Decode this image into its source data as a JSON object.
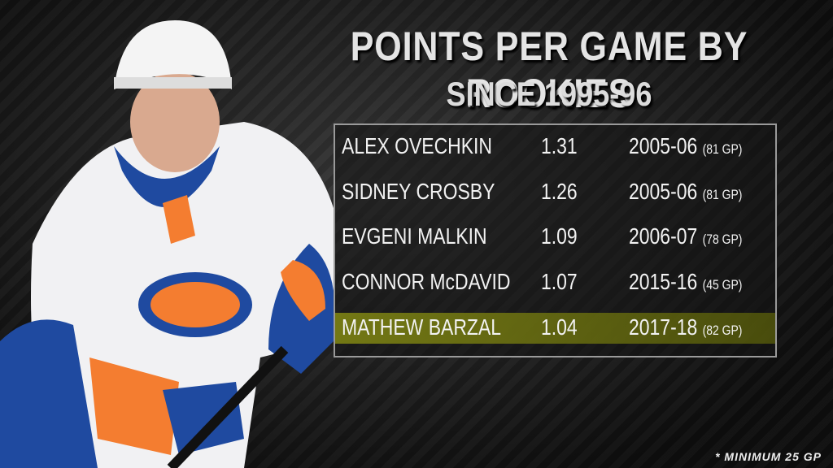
{
  "header": {
    "title": "POINTS PER GAME BY ROOKIES",
    "subtitle": "SINCE 1995-96"
  },
  "table": {
    "rows": [
      [
        "ALEX OVECHKIN",
        "1.31",
        "2005-06",
        "(81 GP)"
      ],
      [
        "SIDNEY CROSBY",
        "1.26",
        "2005-06",
        "(81 GP)"
      ],
      [
        "EVGENI MALKIN",
        "1.09",
        "2006-07",
        "(78 GP)"
      ],
      [
        "CONNOR McDAVID",
        "1.07",
        "2015-16",
        "(45 GP)"
      ],
      [
        "MATHEW BARZAL",
        "1.04",
        "2017-18",
        "(82 GP)"
      ]
    ]
  },
  "footnote": "* MINIMUM 25 GP"
}
